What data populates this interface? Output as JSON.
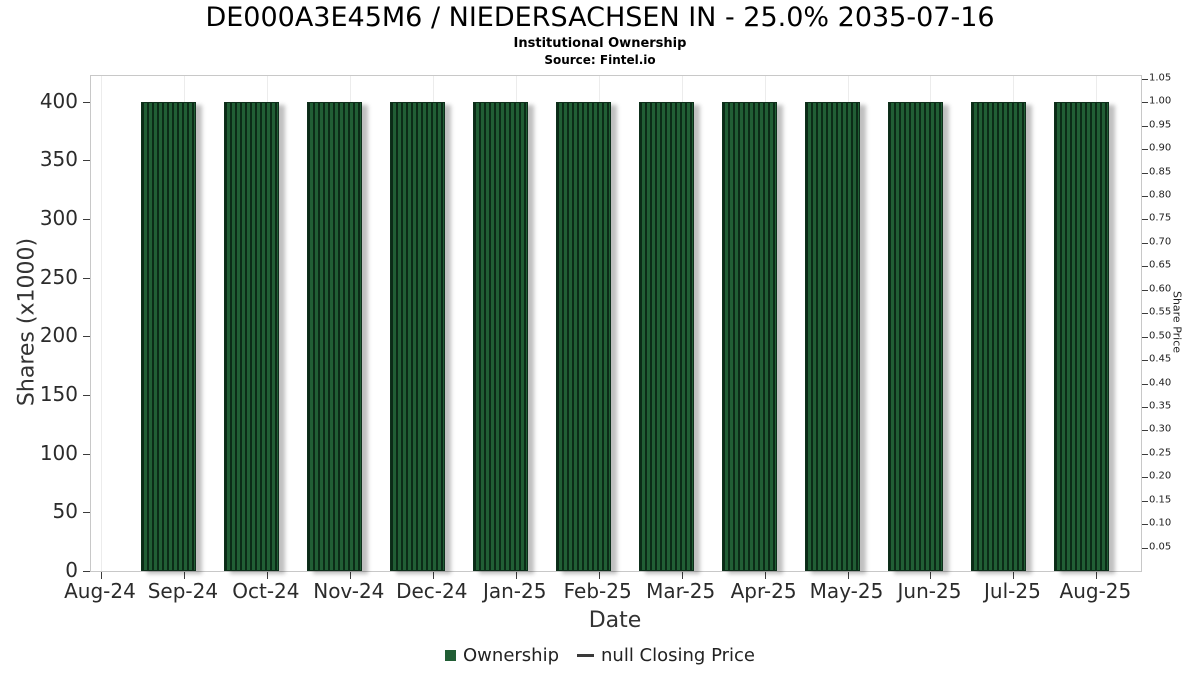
{
  "header": {
    "title": "DE000A3E45M6 / NIEDERSACHSEN IN - 25.0% 2035-07-16",
    "subtitle": "Institutional Ownership",
    "source": "Source: Fintel.io"
  },
  "axes": {
    "x_label": "Date",
    "y_left_label": "Shares (x1000)",
    "y_right_label": "Share Price"
  },
  "legend": {
    "ownership": "Ownership",
    "closing_price": "null Closing Price"
  },
  "colors": {
    "bar_fill": "#215e35",
    "bar_hatch": "#0b2b17",
    "bar_border": "#0e2f1b",
    "grid_line": "#ececec",
    "axis_line": "#c8c8c8",
    "dash": "#3a3a3a"
  },
  "chart_data": {
    "type": "bar",
    "title": "DE000A3E45M6 / NIEDERSACHSEN IN - 25.0% 2035-07-16",
    "subtitle": "Institutional Ownership",
    "source": "Source: Fintel.io",
    "xlabel": "Date",
    "ylabel": "Shares (x1000)",
    "ylabel_right": "Share Price",
    "categories": [
      "Aug-24",
      "Sep-24",
      "Oct-24",
      "Nov-24",
      "Dec-24",
      "Jan-25",
      "Feb-25",
      "Mar-25",
      "Apr-25",
      "May-25",
      "Jun-25",
      "Jul-25",
      "Aug-25"
    ],
    "series": [
      {
        "name": "Ownership",
        "months": [
          "Sep-24",
          "Oct-24",
          "Nov-24",
          "Dec-24",
          "Jan-25",
          "Feb-25",
          "Mar-25",
          "Apr-25",
          "May-25",
          "Jun-25",
          "Jul-25",
          "Aug-25"
        ],
        "values": [
          400,
          400,
          400,
          400,
          400,
          400,
          400,
          400,
          400,
          400,
          400,
          400
        ]
      },
      {
        "name": "null Closing Price",
        "values": []
      }
    ],
    "left_axis": {
      "min": 0,
      "max": 422,
      "ticks": [
        0,
        50,
        100,
        150,
        200,
        250,
        300,
        350,
        400
      ]
    },
    "right_axis": {
      "min": 0,
      "max": 1.056,
      "ticks": [
        0.05,
        0.1,
        0.15,
        0.2,
        0.25,
        0.3,
        0.35,
        0.4,
        0.45,
        0.5,
        0.55,
        0.6,
        0.65,
        0.7,
        0.75,
        0.8,
        0.85,
        0.9,
        0.95,
        1.0,
        1.05
      ]
    },
    "grid": "vertical",
    "legend_position": "bottom"
  }
}
